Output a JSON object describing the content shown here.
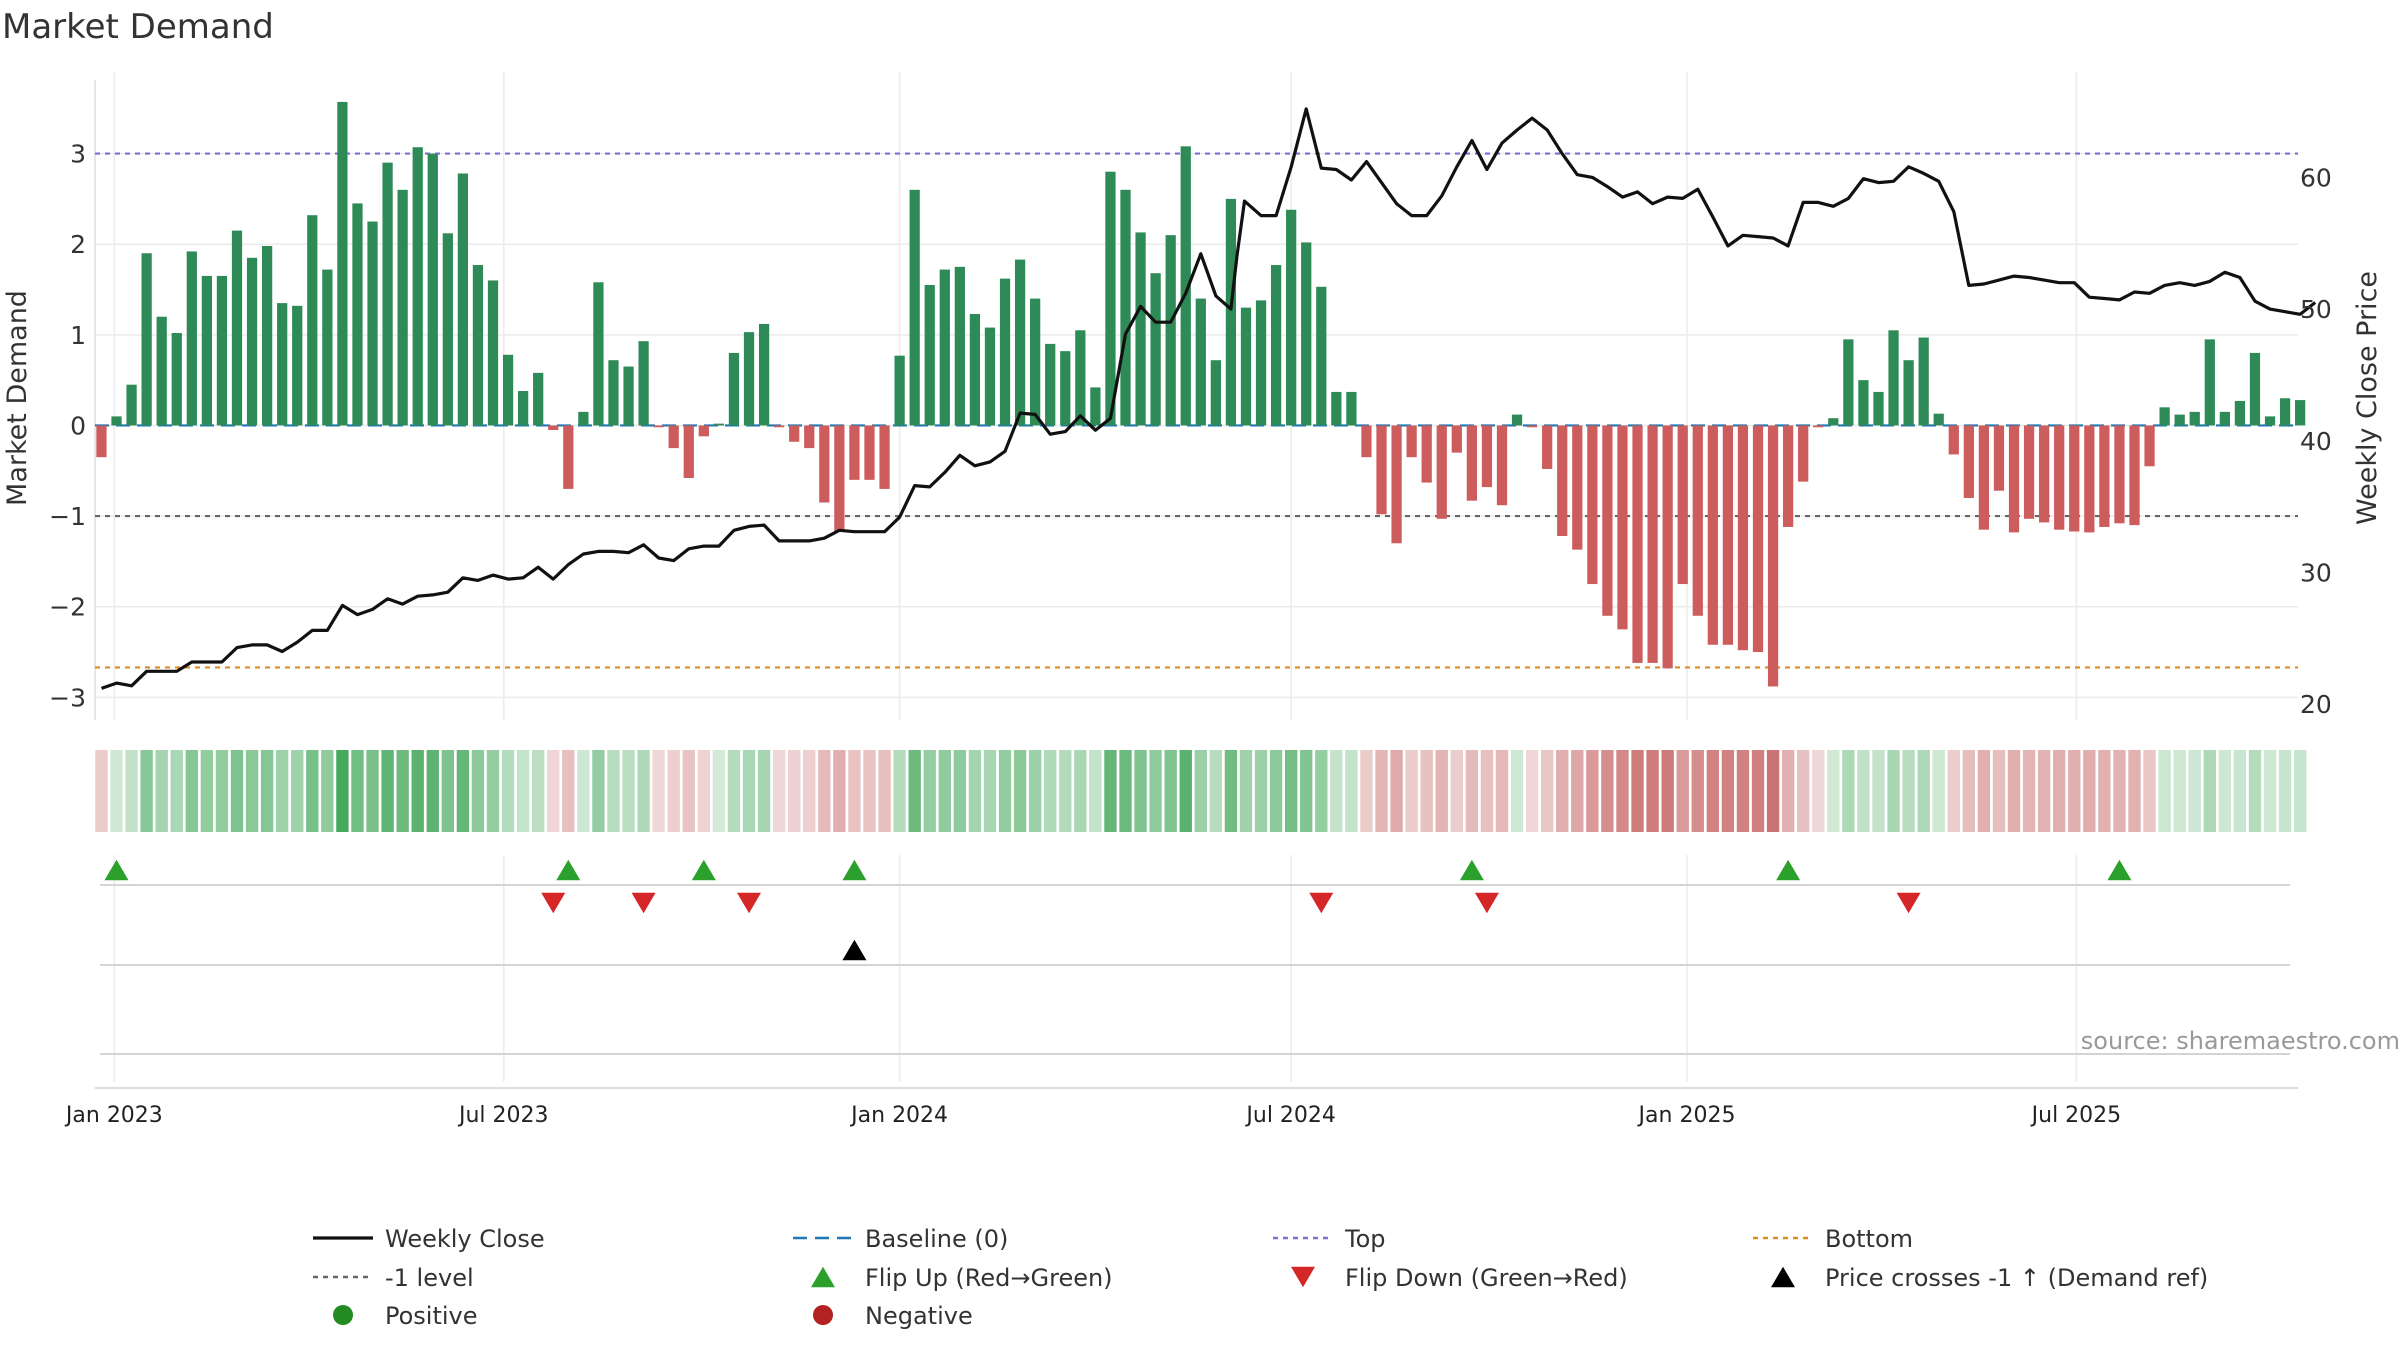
{
  "chart_data": {
    "type": "bar",
    "title": "Market Demand",
    "ylabel": "Market Demand",
    "y2label": "Weekly Close Price",
    "ylim": [
      -3.25,
      3.9
    ],
    "y2lim": [
      18.8,
      68
    ],
    "yticks": [
      "3",
      "2",
      "1",
      "0",
      "−1",
      "−2",
      "−3"
    ],
    "ytick_values": [
      3,
      2,
      1,
      0,
      -1,
      -2,
      -3
    ],
    "y2ticks": [
      "60",
      "50",
      "40",
      "30",
      "20"
    ],
    "y2tick_values": [
      60,
      50,
      40,
      30,
      20
    ],
    "x_start": "2022-12-23",
    "x_end": "2025-10-12",
    "first_week": "2022-12-26",
    "xticks": [
      {
        "label": "Jan 2023",
        "date": "2023-01-01"
      },
      {
        "label": "Jul 2023",
        "date": "2023-07-01"
      },
      {
        "label": "Jan 2024",
        "date": "2024-01-01"
      },
      {
        "label": "Jul 2024",
        "date": "2024-07-01"
      },
      {
        "label": "Jan 2025",
        "date": "2025-01-01"
      },
      {
        "label": "Jul 2025",
        "date": "2025-07-01"
      }
    ],
    "reference_lines": [
      {
        "name": "Top",
        "value": 3,
        "color": "#7b6fd6"
      },
      {
        "name": "-1 level",
        "value": -1,
        "color": "#666666"
      },
      {
        "name": "Bottom",
        "value": -2.67,
        "color": "#e08a1e"
      },
      {
        "name": "Baseline (0)",
        "value": 0,
        "color": "#1f77b4"
      }
    ],
    "demand": [
      -0.35,
      0.1,
      0.45,
      1.9,
      1.2,
      1.02,
      1.92,
      1.65,
      1.65,
      2.15,
      1.85,
      1.98,
      1.35,
      1.32,
      2.32,
      1.72,
      3.57,
      2.45,
      2.25,
      2.9,
      2.6,
      3.07,
      3.0,
      2.12,
      2.78,
      1.77,
      1.6,
      0.78,
      0.38,
      0.58,
      -0.05,
      -0.7,
      0.15,
      1.58,
      0.72,
      0.65,
      0.93,
      -0.02,
      -0.25,
      -0.58,
      -0.12,
      0.02,
      0.8,
      1.03,
      1.12,
      -0.02,
      -0.18,
      -0.25,
      -0.85,
      -1.17,
      -0.6,
      -0.6,
      -0.7,
      0.77,
      2.6,
      1.55,
      1.72,
      1.75,
      1.23,
      1.08,
      1.62,
      1.83,
      1.4,
      0.9,
      0.82,
      1.05,
      0.42,
      2.8,
      2.6,
      2.13,
      1.68,
      2.1,
      3.08,
      1.4,
      0.72,
      2.5,
      1.3,
      1.38,
      1.77,
      2.38,
      2.02,
      1.53,
      0.37,
      0.37,
      -0.35,
      -0.98,
      -1.3,
      -0.35,
      -0.63,
      -1.03,
      -0.3,
      -0.83,
      -0.68,
      -0.88,
      0.12,
      -0.02,
      -0.48,
      -1.22,
      -1.37,
      -1.75,
      -2.1,
      -2.25,
      -2.62,
      -2.62,
      -2.68,
      -1.75,
      -2.1,
      -2.42,
      -2.42,
      -2.48,
      -2.5,
      -2.88,
      -1.12,
      -0.62,
      -0.02,
      0.08,
      0.95,
      0.5,
      0.37,
      1.05,
      0.72,
      0.97,
      0.13,
      -0.32,
      -0.8,
      -1.15,
      -0.72,
      -1.18,
      -1.03,
      -1.07,
      -1.15,
      -1.17,
      -1.18,
      -1.12,
      -1.08,
      -1.1,
      -0.45,
      0.2,
      0.12,
      0.15,
      0.95,
      0.15,
      0.27,
      0.8,
      0.1,
      0.3,
      0.28
    ],
    "close_series": [
      [
        0,
        21.2
      ],
      [
        1,
        21.6
      ],
      [
        2,
        21.4
      ],
      [
        3,
        22.5
      ],
      [
        4,
        22.5
      ],
      [
        5,
        22.5
      ],
      [
        6,
        23.2
      ],
      [
        7,
        23.2
      ],
      [
        8,
        23.2
      ],
      [
        9,
        24.3
      ],
      [
        10,
        24.5
      ],
      [
        11,
        24.5
      ],
      [
        12,
        24.0
      ],
      [
        13,
        24.7
      ],
      [
        14,
        25.6
      ],
      [
        15,
        25.6
      ],
      [
        16,
        27.5
      ],
      [
        17,
        26.8
      ],
      [
        18,
        27.2
      ],
      [
        19,
        28.0
      ],
      [
        20,
        27.6
      ],
      [
        21,
        28.2
      ],
      [
        22,
        28.3
      ],
      [
        23,
        28.5
      ],
      [
        24,
        29.6
      ],
      [
        25,
        29.4
      ],
      [
        26,
        29.8
      ],
      [
        27,
        29.5
      ],
      [
        28,
        29.6
      ],
      [
        29,
        30.4
      ],
      [
        30,
        29.5
      ],
      [
        31,
        30.6
      ],
      [
        32,
        31.4
      ],
      [
        33,
        31.6
      ],
      [
        34,
        31.6
      ],
      [
        35,
        31.5
      ],
      [
        36,
        32.1
      ],
      [
        37,
        31.1
      ],
      [
        38,
        30.9
      ],
      [
        39,
        31.8
      ],
      [
        40,
        32.0
      ],
      [
        41,
        32.0
      ],
      [
        42,
        33.2
      ],
      [
        43,
        33.5
      ],
      [
        44,
        33.6
      ],
      [
        45,
        32.4
      ],
      [
        46,
        32.4
      ],
      [
        47,
        32.4
      ],
      [
        48,
        32.6
      ],
      [
        49,
        33.2
      ],
      [
        50,
        33.1
      ],
      [
        51,
        33.1
      ],
      [
        52,
        33.1
      ],
      [
        53,
        34.2
      ],
      [
        54,
        36.6
      ],
      [
        55,
        36.5
      ],
      [
        56,
        37.6
      ],
      [
        57,
        38.9
      ],
      [
        58,
        38.1
      ],
      [
        59,
        38.4
      ],
      [
        60,
        39.2
      ],
      [
        61,
        42.1
      ],
      [
        62,
        42.0
      ],
      [
        63,
        40.5
      ],
      [
        64,
        40.7
      ],
      [
        65,
        41.9
      ],
      [
        66,
        40.8
      ],
      [
        67,
        41.7
      ],
      [
        68,
        48.1
      ],
      [
        69,
        50.2
      ],
      [
        70,
        49.0
      ],
      [
        71,
        49.0
      ],
      [
        72,
        51.2
      ],
      [
        73,
        54.2
      ],
      [
        74,
        51.0
      ],
      [
        75,
        50.0
      ],
      [
        75.4,
        54.0
      ],
      [
        75.9,
        58.2
      ],
      [
        77,
        57.1
      ],
      [
        78,
        57.1
      ],
      [
        79,
        60.8
      ],
      [
        80,
        65.2
      ],
      [
        81,
        60.7
      ],
      [
        82,
        60.6
      ],
      [
        83,
        59.8
      ],
      [
        84,
        61.2
      ],
      [
        85,
        59.6
      ],
      [
        86,
        58.0
      ],
      [
        87,
        57.1
      ],
      [
        88,
        57.1
      ],
      [
        89,
        58.6
      ],
      [
        90,
        60.8
      ],
      [
        91,
        62.8
      ],
      [
        92,
        60.6
      ],
      [
        93,
        62.6
      ],
      [
        94,
        63.6
      ],
      [
        95,
        64.5
      ],
      [
        96,
        63.6
      ],
      [
        97,
        61.8
      ],
      [
        98,
        60.2
      ],
      [
        99,
        60.0
      ],
      [
        100,
        59.3
      ],
      [
        101,
        58.5
      ],
      [
        102,
        58.9
      ],
      [
        103,
        58.0
      ],
      [
        104,
        58.5
      ],
      [
        105,
        58.4
      ],
      [
        106,
        59.1
      ],
      [
        107,
        57.0
      ],
      [
        108,
        54.8
      ],
      [
        109,
        55.6
      ],
      [
        110,
        55.5
      ],
      [
        111,
        55.4
      ],
      [
        112,
        54.8
      ],
      [
        113,
        58.1
      ],
      [
        114,
        58.1
      ],
      [
        115,
        57.8
      ],
      [
        116,
        58.4
      ],
      [
        117,
        59.9
      ],
      [
        118,
        59.6
      ],
      [
        119,
        59.7
      ],
      [
        120,
        60.8
      ],
      [
        121,
        60.3
      ],
      [
        122,
        59.7
      ],
      [
        123,
        57.4
      ],
      [
        124,
        51.8
      ],
      [
        125,
        51.9
      ],
      [
        126,
        52.2
      ],
      [
        127,
        52.5
      ],
      [
        128,
        52.4
      ],
      [
        129,
        52.2
      ],
      [
        130,
        52.0
      ],
      [
        131,
        52.0
      ],
      [
        132,
        50.9
      ],
      [
        133,
        50.8
      ],
      [
        134,
        50.7
      ],
      [
        135,
        51.3
      ],
      [
        136,
        51.2
      ],
      [
        137,
        51.8
      ],
      [
        138,
        52.0
      ],
      [
        139,
        51.8
      ],
      [
        140,
        52.1
      ],
      [
        141,
        52.8
      ],
      [
        142,
        52.4
      ],
      [
        143,
        50.6
      ],
      [
        144,
        50.0
      ],
      [
        145,
        49.8
      ],
      [
        146,
        49.6
      ],
      [
        147,
        50.5
      ]
    ],
    "flip_up_weeks": [
      1,
      31,
      40,
      50,
      91,
      112,
      134
    ],
    "flip_down_weeks": [
      30,
      36,
      43,
      81,
      92,
      120
    ],
    "price_cross_weeks": [
      50
    ],
    "legend": [
      "Weekly Close",
      "Baseline (0)",
      "Top",
      "Bottom",
      "-1 level",
      "Flip Up (Red→Green)",
      "Flip Down (Green→Red)",
      "Price crosses -1 ↑ (Demand ref)",
      "Positive",
      "Negative"
    ],
    "legend_position": "bottom",
    "source": "source: sharemaestro.com",
    "colors": {
      "positive": "#2e8b57",
      "negative": "#cd5c5c",
      "close": "#111111",
      "flip_up": "#2ca02c",
      "flip_down": "#d62728",
      "cross": "#000000",
      "positive_dot": "#228b22",
      "negative_dot": "#b22222",
      "grid": "#ebebeb",
      "axis": "#dddddd",
      "text": "#333333"
    }
  }
}
